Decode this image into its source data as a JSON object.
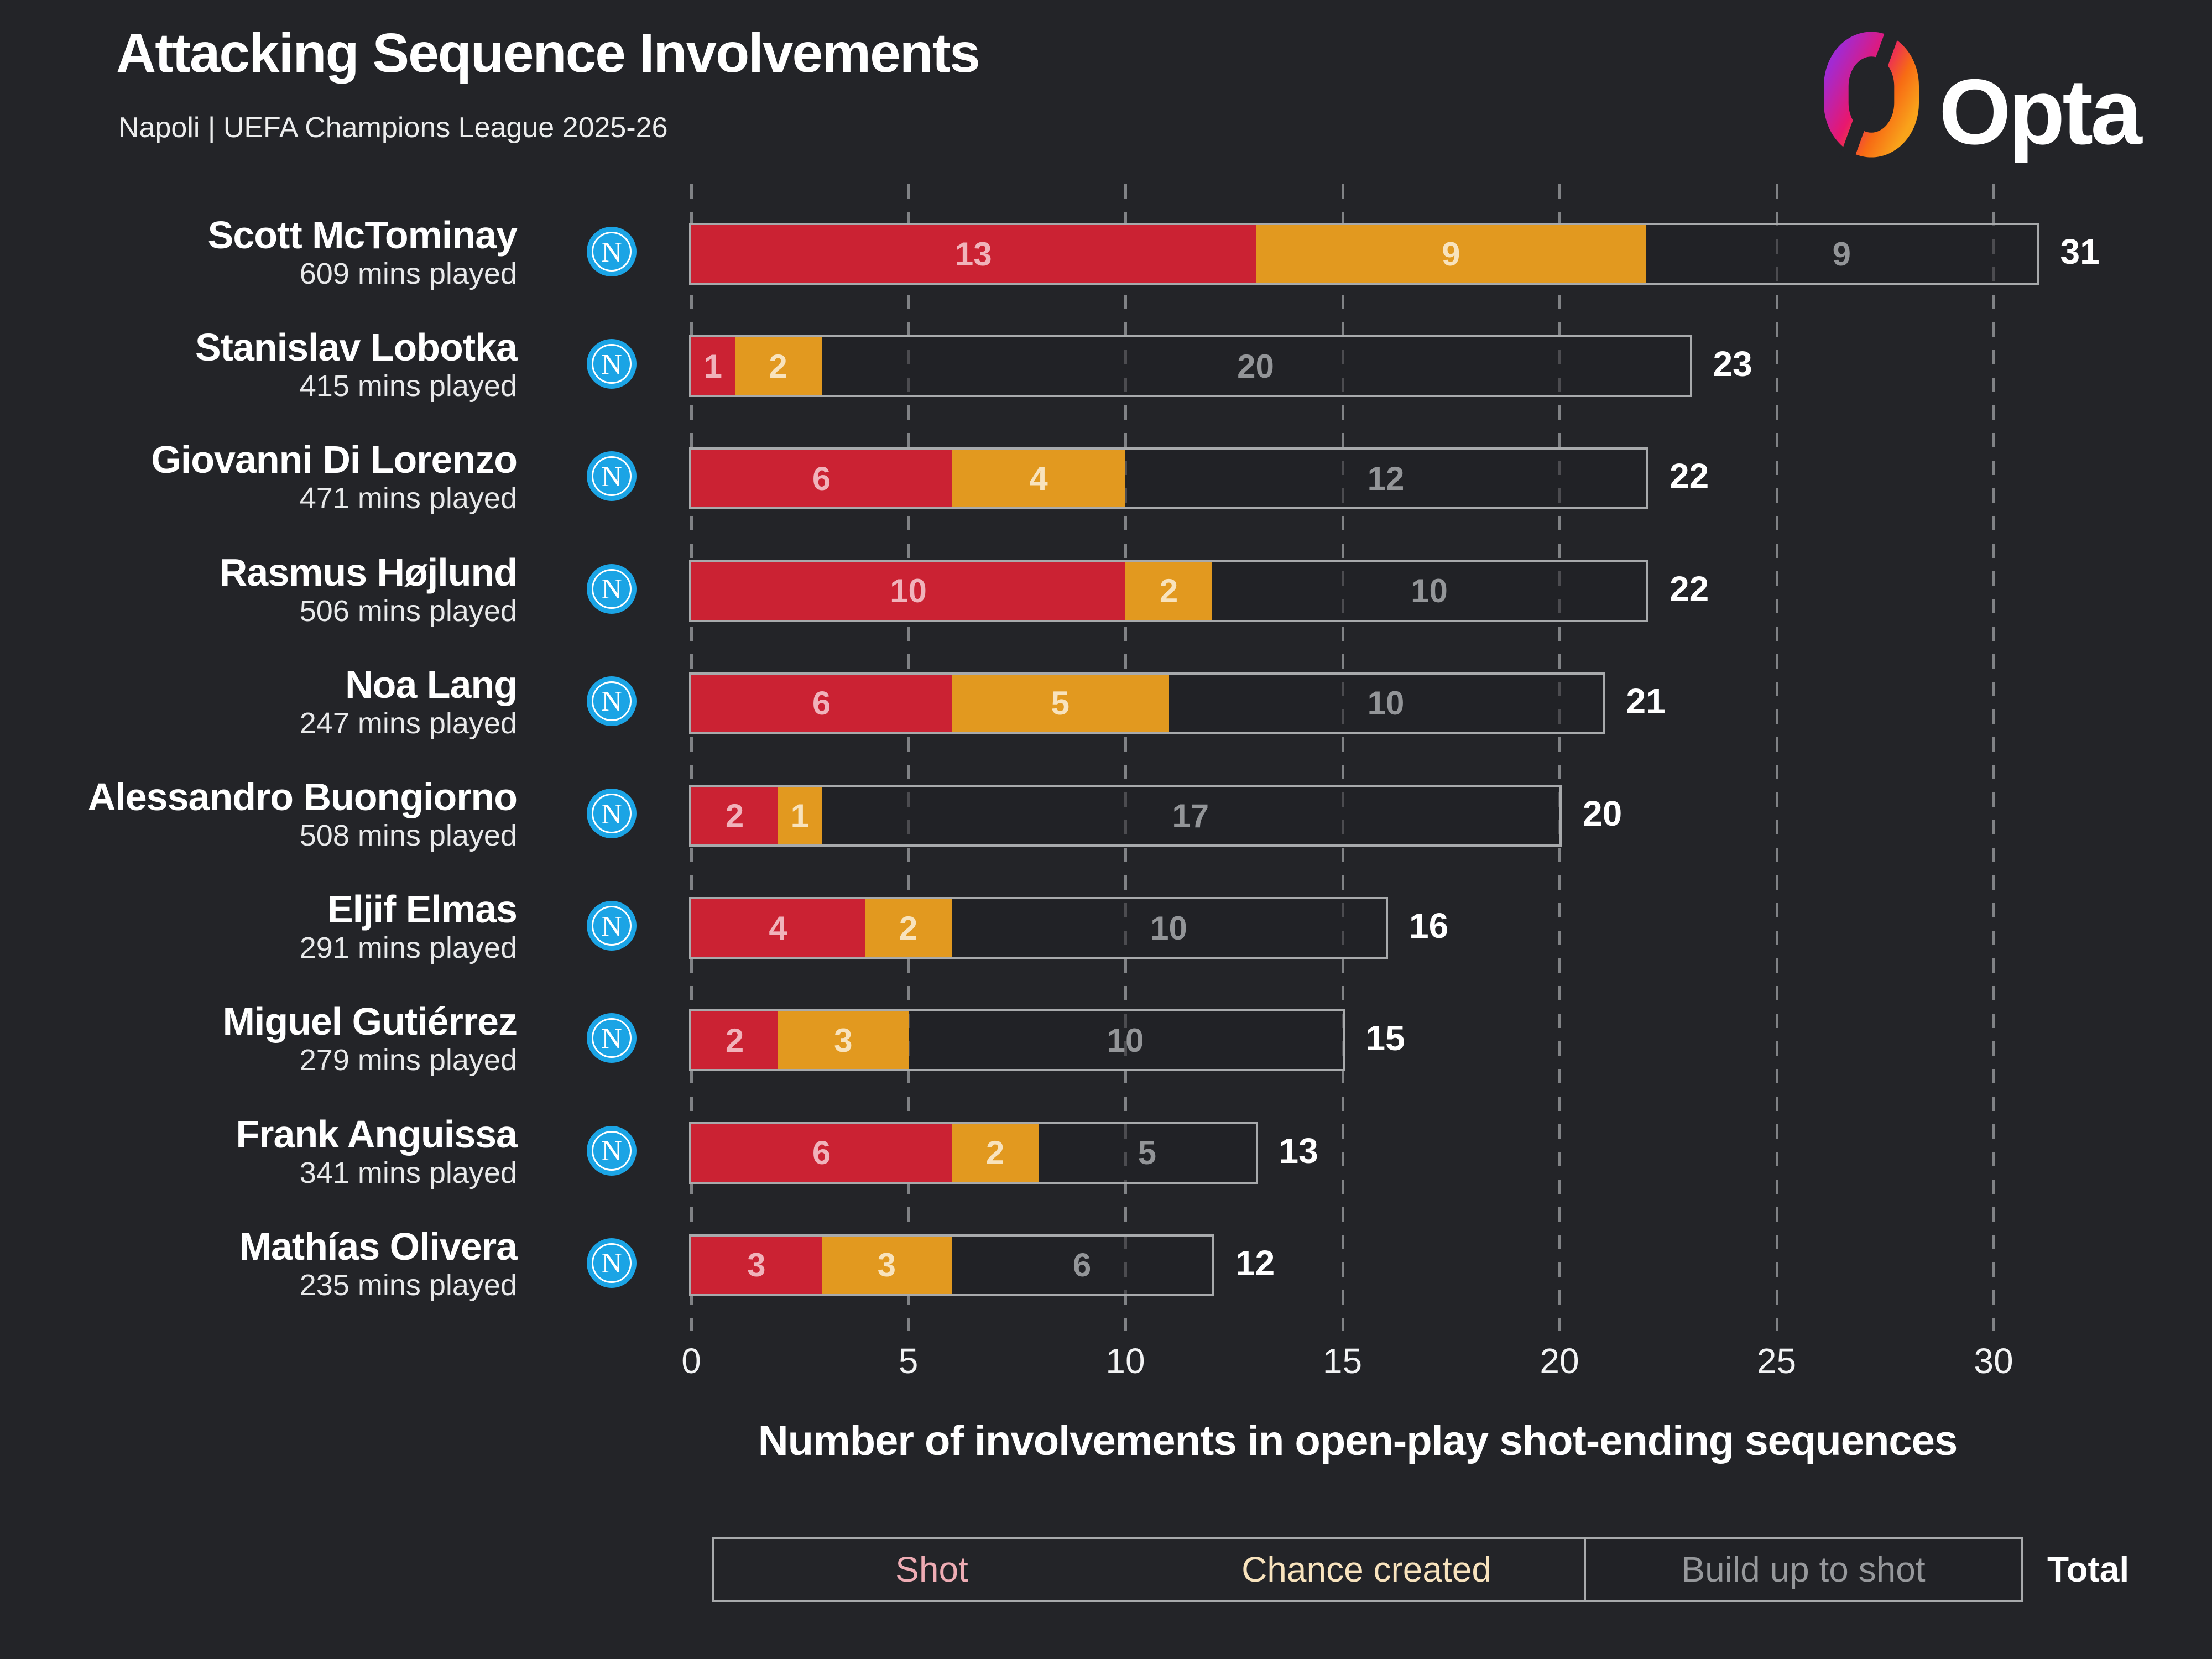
{
  "header": {
    "title": "Attacking Sequence Involvements",
    "subtitle": "Napoli | UEFA Champions League 2025-26"
  },
  "brand": {
    "logo_text": "Opta",
    "logo_icon": "opta-ring-icon"
  },
  "badge": {
    "letter": "N",
    "color": "#1ba4e5"
  },
  "colors": {
    "background": "#232428",
    "shot": "#cb2233",
    "chance_created": "#e2991f",
    "outline": "#a8aaac",
    "gridline": "#9b9da0"
  },
  "chart_data": {
    "type": "bar",
    "orientation": "horizontal",
    "stacked": true,
    "title": "Attacking Sequence Involvements",
    "subtitle": "Napoli | UEFA Champions League 2025-26",
    "xlabel": "Number of involvements in open-play shot-ending sequences",
    "xlim": [
      0,
      31
    ],
    "x_ticks": [
      0,
      5,
      10,
      15,
      20,
      25,
      30
    ],
    "legend_position": "bottom",
    "series_names": [
      "Shot",
      "Chance created",
      "Build up to shot"
    ],
    "players": [
      {
        "name": "Scott McTominay",
        "mins": "609 mins played",
        "shot": 13,
        "chance": 9,
        "buildup": 9,
        "total": 31
      },
      {
        "name": "Stanislav Lobotka",
        "mins": "415 mins played",
        "shot": 1,
        "chance": 2,
        "buildup": 20,
        "total": 23
      },
      {
        "name": "Giovanni Di Lorenzo",
        "mins": "471 mins played",
        "shot": 6,
        "chance": 4,
        "buildup": 12,
        "total": 22
      },
      {
        "name": "Rasmus Højlund",
        "mins": "506 mins played",
        "shot": 10,
        "chance": 2,
        "buildup": 10,
        "total": 22
      },
      {
        "name": "Noa Lang",
        "mins": "247 mins played",
        "shot": 6,
        "chance": 5,
        "buildup": 10,
        "total": 21
      },
      {
        "name": "Alessandro Buongiorno",
        "mins": "508 mins played",
        "shot": 2,
        "chance": 1,
        "buildup": 17,
        "total": 20
      },
      {
        "name": "Eljif Elmas",
        "mins": "291 mins played",
        "shot": 4,
        "chance": 2,
        "buildup": 10,
        "total": 16
      },
      {
        "name": "Miguel Gutiérrez",
        "mins": "279 mins played",
        "shot": 2,
        "chance": 3,
        "buildup": 10,
        "total": 15
      },
      {
        "name": "Frank Anguissa",
        "mins": "341 mins played",
        "shot": 6,
        "chance": 2,
        "buildup": 5,
        "total": 13
      },
      {
        "name": "Mathías Olivera",
        "mins": "235 mins played",
        "shot": 3,
        "chance": 3,
        "buildup": 6,
        "total": 12
      }
    ]
  },
  "axis": {
    "ticks": [
      "0",
      "5",
      "10",
      "15",
      "20",
      "25",
      "30"
    ],
    "title": "Number of involvements in open-play shot-ending sequences"
  },
  "legend": {
    "shot": "Shot",
    "chance": "Chance created",
    "buildup": "Build up to shot",
    "total": "Total"
  }
}
